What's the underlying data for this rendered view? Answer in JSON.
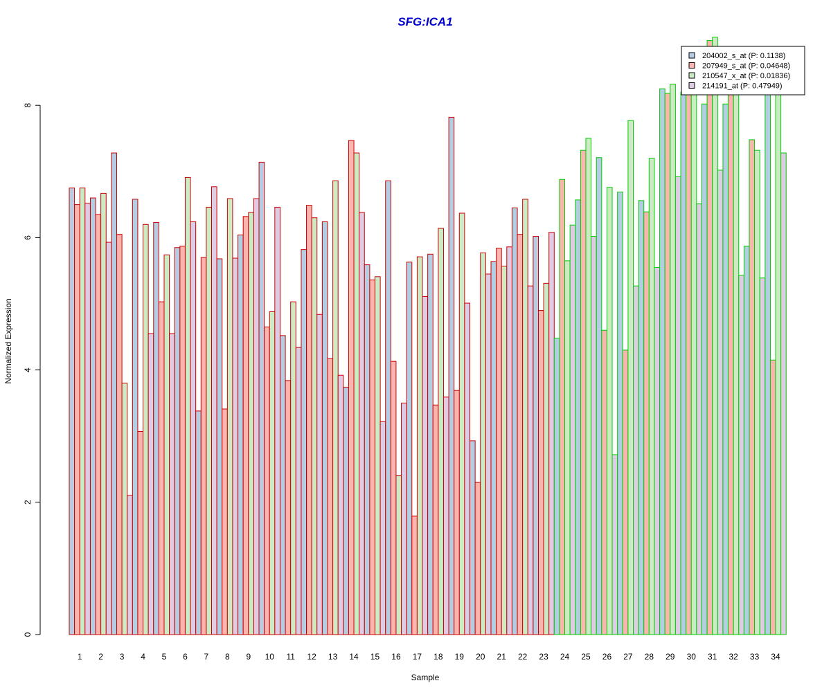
{
  "chart_data": {
    "type": "bar",
    "title": "SFG:ICA1",
    "xlabel": "Sample",
    "ylabel": "Normalized Expression",
    "ylim": [
      0,
      9
    ],
    "yticks": [
      0,
      2,
      4,
      6,
      8
    ],
    "grid": false,
    "legend_position": "top-right",
    "categories": [
      "1",
      "2",
      "3",
      "4",
      "5",
      "6",
      "7",
      "8",
      "9",
      "10",
      "11",
      "12",
      "13",
      "14",
      "15",
      "16",
      "17",
      "18",
      "19",
      "20",
      "21",
      "22",
      "23",
      "24",
      "25",
      "26",
      "27",
      "28",
      "29",
      "30",
      "31",
      "32",
      "33",
      "34"
    ],
    "group_outline_colors": [
      "#cc0000",
      "#cc0000",
      "#cc0000",
      "#cc0000",
      "#cc0000",
      "#cc0000",
      "#cc0000",
      "#cc0000",
      "#cc0000",
      "#cc0000",
      "#cc0000",
      "#cc0000",
      "#cc0000",
      "#cc0000",
      "#cc0000",
      "#cc0000",
      "#cc0000",
      "#cc0000",
      "#cc0000",
      "#cc0000",
      "#cc0000",
      "#cc0000",
      "#cc0000",
      "#00cc00",
      "#00cc00",
      "#00cc00",
      "#00cc00",
      "#00cc00",
      "#00cc00",
      "#00cc00",
      "#00cc00",
      "#00cc00",
      "#00cc00",
      "#00cc00"
    ],
    "series": [
      {
        "name": "204002_s_at (P: 0.1138)",
        "fill": "#b3cde3",
        "values": [
          6.75,
          6.6,
          7.28,
          6.58,
          6.23,
          5.85,
          3.38,
          5.68,
          6.04,
          7.14,
          4.52,
          5.82,
          6.24,
          3.74,
          5.59,
          6.86,
          5.63,
          5.75,
          7.82,
          2.93,
          5.64,
          6.45,
          6.02,
          4.48,
          6.57,
          7.21,
          6.69,
          6.56,
          8.25,
          8.2,
          8.02,
          8.02,
          5.87,
          8.3
        ]
      },
      {
        "name": "207949_s_at (P: 0.04648)",
        "fill": "#fbb4ae",
        "values": [
          6.5,
          6.35,
          6.05,
          3.07,
          5.03,
          5.87,
          5.7,
          3.41,
          6.32,
          4.65,
          3.84,
          6.49,
          4.17,
          7.47,
          5.36,
          4.13,
          1.79,
          3.47,
          3.69,
          2.3,
          5.84,
          6.05,
          4.9,
          6.88,
          7.32,
          4.6,
          4.3,
          6.39,
          8.18,
          8.3,
          8.98,
          8.3,
          7.48,
          4.15
        ]
      },
      {
        "name": "210547_x_at (P: 0.01836)",
        "fill": "#ccebc5",
        "values": [
          6.75,
          6.67,
          3.8,
          6.2,
          5.74,
          6.91,
          6.46,
          6.59,
          6.38,
          4.88,
          5.03,
          6.3,
          6.86,
          7.28,
          5.41,
          2.4,
          5.71,
          6.14,
          6.37,
          5.77,
          5.57,
          6.58,
          5.31,
          5.65,
          7.5,
          6.76,
          7.77,
          7.2,
          8.32,
          8.3,
          9.03,
          8.3,
          7.32,
          8.3
        ]
      },
      {
        "name": "214191_at (P: 0.47949)",
        "fill": "#decbe4",
        "values": [
          6.52,
          5.93,
          2.1,
          4.55,
          4.55,
          6.24,
          6.77,
          5.69,
          6.59,
          6.46,
          4.34,
          4.84,
          3.92,
          6.38,
          3.22,
          3.5,
          5.11,
          3.59,
          5.01,
          5.45,
          5.86,
          5.27,
          6.08,
          6.19,
          6.02,
          2.72,
          5.27,
          5.55,
          6.92,
          6.51,
          7.02,
          5.43,
          5.39,
          7.28
        ]
      }
    ]
  }
}
